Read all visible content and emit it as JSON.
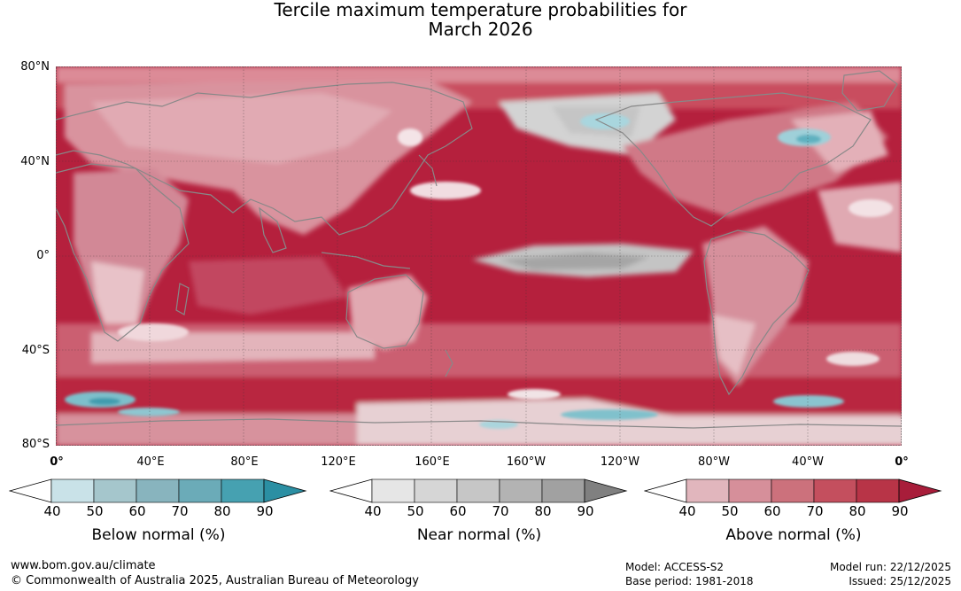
{
  "title": {
    "line1": "Tercile maximum temperature probabilities for",
    "line2": "March 2026"
  },
  "map": {
    "lat_labels": [
      "80°N",
      "40°N",
      "0°",
      "40°S",
      "80°S"
    ],
    "lon_labels": [
      "0°",
      "40°E",
      "80°E",
      "120°E",
      "160°E",
      "160°W",
      "120°W",
      "80°W",
      "40°W",
      "0°"
    ],
    "colors": {
      "ocean_hot": "#b5203d",
      "mid_hot": "#cc5a6a",
      "light_hot": "#e1a4ae",
      "pale_hot": "#efd0d5",
      "near": "#a6a6a6",
      "near_light": "#d6d6d6",
      "below": "#4aa4b7",
      "below_light": "#a9d6de",
      "coast": "#888888"
    }
  },
  "colorbars": [
    {
      "id": "below",
      "title": "Below normal (%)",
      "ticks": [
        "40",
        "50",
        "60",
        "70",
        "80",
        "90"
      ],
      "colors": [
        "#c9e2e8",
        "#a5c6cc",
        "#88b4be",
        "#6babb8",
        "#46a1b1",
        "#2b8fa3"
      ]
    },
    {
      "id": "near",
      "title": "Near normal (%)",
      "ticks": [
        "40",
        "50",
        "60",
        "70",
        "80",
        "90"
      ],
      "colors": [
        "#e6e6e6",
        "#d6d6d6",
        "#c6c6c6",
        "#b3b3b3",
        "#a1a1a1",
        "#808080"
      ]
    },
    {
      "id": "above",
      "title": "Above normal (%)",
      "ticks": [
        "40",
        "50",
        "60",
        "70",
        "80",
        "90"
      ],
      "colors": [
        "#e1b6bd",
        "#d68f9a",
        "#cc717c",
        "#c44f5e",
        "#b83447",
        "#a81d3a"
      ]
    }
  ],
  "footer": {
    "website": "www.bom.gov.au/climate",
    "copyright": "© Commonwealth of Australia 2025, Australian Bureau of Meteorology",
    "model": "Model: ACCESS-S2",
    "base_period": "Base period: 1981-2018",
    "model_run": "Model run: 22/12/2025",
    "issued": "Issued: 25/12/2025"
  }
}
